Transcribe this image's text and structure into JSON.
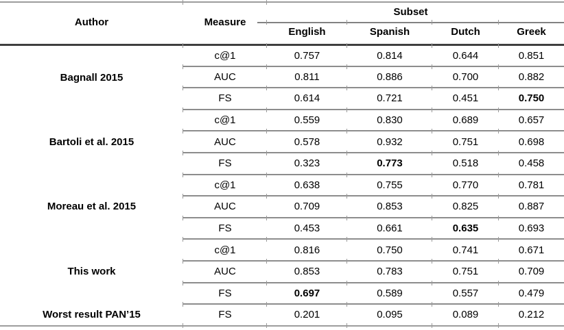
{
  "table": {
    "header": {
      "author_label": "Author",
      "measure_label": "Measure",
      "subset_label": "Subset",
      "subset_columns": [
        "English",
        "Spanish",
        "Dutch",
        "Greek"
      ]
    },
    "line_colors": {
      "outer_border": "#9c9c9c",
      "header_rule": "#3e3e3e",
      "row_separator": "#8c8c8c",
      "subset_underline": "#828282"
    },
    "groups": [
      {
        "author": "Bagnall 2015",
        "rows": [
          {
            "measure": "c@1",
            "values": [
              "0.757",
              "0.814",
              "0.644",
              "0.851"
            ],
            "bold": []
          },
          {
            "measure": "AUC",
            "values": [
              "0.811",
              "0.886",
              "0.700",
              "0.882"
            ],
            "bold": []
          },
          {
            "measure": "FS",
            "values": [
              "0.614",
              "0.721",
              "0.451",
              "0.750"
            ],
            "bold": [
              3
            ]
          }
        ]
      },
      {
        "author": "Bartoli et al. 2015",
        "rows": [
          {
            "measure": "c@1",
            "values": [
              "0.559",
              "0.830",
              "0.689",
              "0.657"
            ],
            "bold": []
          },
          {
            "measure": "AUC",
            "values": [
              "0.578",
              "0.932",
              "0.751",
              "0.698"
            ],
            "bold": []
          },
          {
            "measure": "FS",
            "values": [
              "0.323",
              "0.773",
              "0.518",
              "0.458"
            ],
            "bold": [
              1
            ]
          }
        ]
      },
      {
        "author": "Moreau et al. 2015",
        "rows": [
          {
            "measure": "c@1",
            "values": [
              "0.638",
              "0.755",
              "0.770",
              "0.781"
            ],
            "bold": []
          },
          {
            "measure": "AUC",
            "values": [
              "0.709",
              "0.853",
              "0.825",
              "0.887"
            ],
            "bold": []
          },
          {
            "measure": "FS",
            "values": [
              "0.453",
              "0.661",
              "0.635",
              "0.693"
            ],
            "bold": [
              2
            ]
          }
        ]
      },
      {
        "author": "This work",
        "rows": [
          {
            "measure": "c@1",
            "values": [
              "0.816",
              "0.750",
              "0.741",
              "0.671"
            ],
            "bold": []
          },
          {
            "measure": "AUC",
            "values": [
              "0.853",
              "0.783",
              "0.751",
              "0.709"
            ],
            "bold": []
          },
          {
            "measure": "FS",
            "values": [
              "0.697",
              "0.589",
              "0.557",
              "0.479"
            ],
            "bold": [
              0
            ]
          }
        ]
      },
      {
        "author": "Worst result PAN’15",
        "rows": [
          {
            "measure": "FS",
            "values": [
              "0.201",
              "0.095",
              "0.089",
              "0.212"
            ],
            "bold": []
          }
        ]
      }
    ]
  }
}
